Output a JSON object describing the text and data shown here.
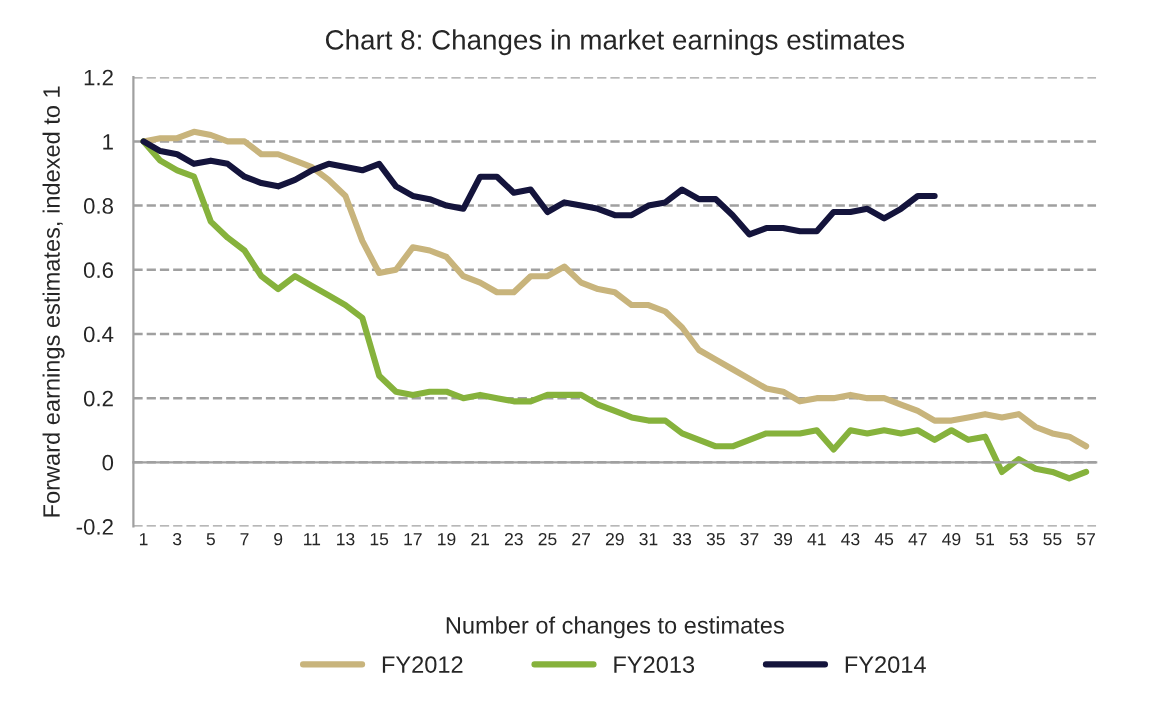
{
  "chart_data": {
    "type": "line",
    "title": "Chart 8: Changes in market earnings estimates",
    "xlabel": "Number of changes to estimates",
    "ylabel": "Forward earnings estimates, indexed to 1",
    "categories": [
      "1",
      null,
      "3",
      null,
      "5",
      null,
      "7",
      null,
      "9",
      null,
      "11",
      null,
      "13",
      null,
      "15",
      null,
      "17",
      null,
      "19",
      null,
      "21",
      null,
      "23",
      null,
      "25",
      null,
      "27",
      null,
      "29",
      null,
      "31",
      null,
      "33",
      null,
      "35",
      null,
      "37",
      null,
      "39",
      null,
      "41",
      null,
      "43",
      null,
      "45",
      null,
      "47",
      null,
      "49",
      null,
      "51",
      null,
      "53",
      null,
      "55",
      null,
      "57"
    ],
    "series": [
      {
        "name": "FY2012",
        "color": "#c8b47c",
        "values": [
          1,
          1.01,
          1.01,
          1.03,
          1.02,
          1.0,
          1.0,
          0.96,
          0.96,
          0.94,
          0.92,
          0.88,
          0.83,
          0.69,
          0.59,
          0.6,
          0.67,
          0.66,
          0.64,
          0.58,
          0.56,
          0.53,
          0.53,
          0.58,
          0.58,
          0.61,
          0.56,
          0.54,
          0.53,
          0.49,
          0.49,
          0.47,
          0.42,
          0.35,
          0.32,
          0.29,
          0.26,
          0.23,
          0.22,
          0.19,
          0.2,
          0.2,
          0.21,
          0.2,
          0.2,
          0.18,
          0.16,
          0.13,
          0.13,
          0.14,
          0.15,
          0.14,
          0.15,
          0.11,
          0.09,
          0.08,
          0.05
        ]
      },
      {
        "name": "FY2013",
        "color": "#86b23c",
        "values": [
          1,
          0.94,
          0.91,
          0.89,
          0.75,
          0.7,
          0.66,
          0.58,
          0.54,
          0.58,
          0.55,
          0.52,
          0.49,
          0.45,
          0.27,
          0.22,
          0.21,
          0.22,
          0.22,
          0.2,
          0.21,
          0.2,
          0.19,
          0.19,
          0.21,
          0.21,
          0.21,
          0.18,
          0.16,
          0.14,
          0.13,
          0.13,
          0.09,
          0.07,
          0.05,
          0.05,
          0.07,
          0.09,
          0.09,
          0.09,
          0.1,
          0.04,
          0.1,
          0.09,
          0.1,
          0.09,
          0.1,
          0.07,
          0.1,
          0.07,
          0.08,
          -0.03,
          0.01,
          -0.02,
          -0.03,
          -0.05,
          -0.03
        ]
      },
      {
        "name": "FY2014",
        "color": "#14143c",
        "values": [
          1,
          0.97,
          0.96,
          0.93,
          0.94,
          0.93,
          0.89,
          0.87,
          0.86,
          0.88,
          0.91,
          0.93,
          0.92,
          0.91,
          0.93,
          0.86,
          0.83,
          0.82,
          0.8,
          0.79,
          0.89,
          0.89,
          0.84,
          0.85,
          0.78,
          0.81,
          0.8,
          0.79,
          0.77,
          0.77,
          0.8,
          0.81,
          0.85,
          0.82,
          0.82,
          0.77,
          0.71,
          0.73,
          0.73,
          0.72,
          0.72,
          0.78,
          0.78,
          0.79,
          0.76,
          0.79,
          0.83,
          0.83,
          null,
          null,
          null,
          null,
          null,
          null,
          null,
          null,
          null
        ]
      }
    ],
    "ylim": [
      -0.2,
      1.2
    ],
    "yticks": [
      -0.2,
      0,
      0.2,
      0.4,
      0.6,
      0.8,
      1,
      1.2
    ],
    "grid": "y",
    "legend": "bottom",
    "marker": "none",
    "line_style": "solid"
  }
}
